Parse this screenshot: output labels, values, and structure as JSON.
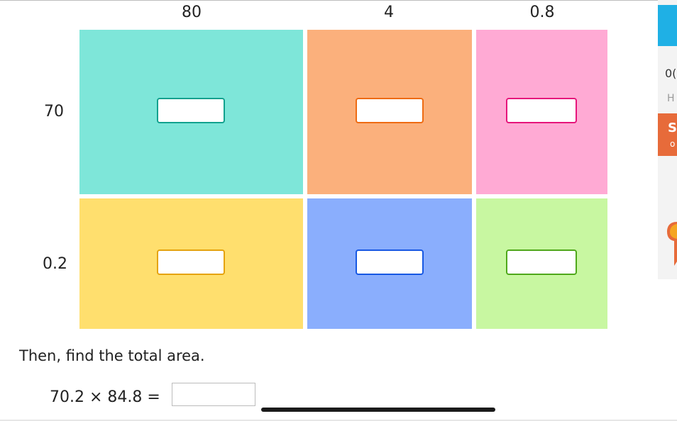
{
  "grid": {
    "column_labels": [
      "80",
      "4",
      "0.8"
    ],
    "row_labels": [
      "70",
      "0.2"
    ],
    "cells": [
      {
        "fill": "#7ee6d9",
        "border": "#12a18e"
      },
      {
        "fill": "#fbb07c",
        "border": "#ee6b12"
      },
      {
        "fill": "#ffaad4",
        "border": "#e6157b"
      },
      {
        "fill": "#ffdf6e",
        "border": "#e5a30e"
      },
      {
        "fill": "#8aaefd",
        "border": "#1758e3"
      },
      {
        "fill": "#c8f7a1",
        "border": "#4fa81b"
      }
    ]
  },
  "prompt": {
    "text": "Then, find the total area."
  },
  "equation": {
    "text": "70.2 × 84.8 ="
  },
  "side_panel": {
    "line1": "0(",
    "line2": "H",
    "orange_line1": "S",
    "orange_line2": "o",
    "colors": {
      "top": "#1fb0e5",
      "orange": "#e76b3a"
    }
  }
}
